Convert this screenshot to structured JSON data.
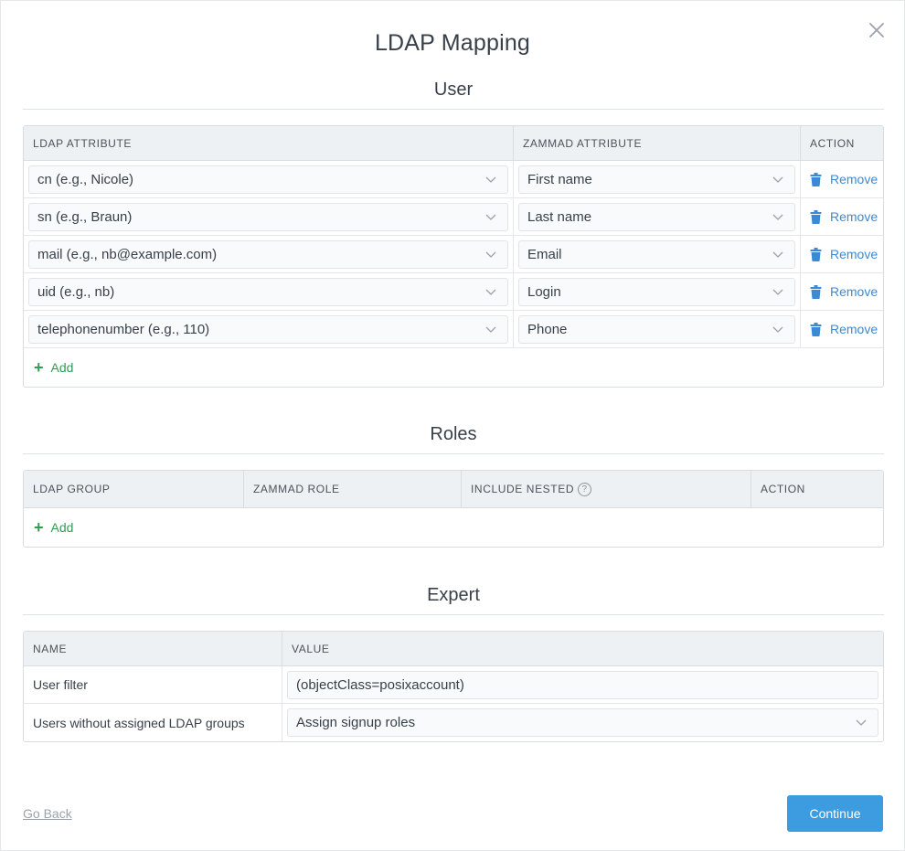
{
  "modal": {
    "title": "LDAP Mapping",
    "close_icon": "close-icon"
  },
  "user": {
    "section_title": "User",
    "headers": [
      "LDAP ATTRIBUTE",
      "ZAMMAD ATTRIBUTE",
      "ACTION"
    ],
    "rows": [
      {
        "ldap": "cn (e.g., Nicole)",
        "zammad": "First name",
        "action": "Remove"
      },
      {
        "ldap": "sn (e.g., Braun)",
        "zammad": "Last name",
        "action": "Remove"
      },
      {
        "ldap": "mail (e.g., nb@example.com)",
        "zammad": "Email",
        "action": "Remove"
      },
      {
        "ldap": "uid (e.g., nb)",
        "zammad": "Login",
        "action": "Remove"
      },
      {
        "ldap": "telephonenumber (e.g., 110)",
        "zammad": "Phone",
        "action": "Remove"
      }
    ],
    "add_label": "Add"
  },
  "roles": {
    "section_title": "Roles",
    "headers": [
      "LDAP GROUP",
      "ZAMMAD ROLE",
      "INCLUDE NESTED",
      "ACTION"
    ],
    "help_glyph": "?",
    "add_label": "Add"
  },
  "expert": {
    "section_title": "Expert",
    "headers": [
      "NAME",
      "VALUE"
    ],
    "rows": [
      {
        "name": "User filter",
        "value": "(objectClass=posixaccount)"
      },
      {
        "name": "Users without assigned LDAP groups",
        "value": "Assign signup roles"
      }
    ]
  },
  "footer": {
    "go_back": "Go Back",
    "continue": "Continue"
  },
  "colors": {
    "accent": "#3d9ce0",
    "link": "#3a8ad6",
    "add": "#2e9e52"
  }
}
